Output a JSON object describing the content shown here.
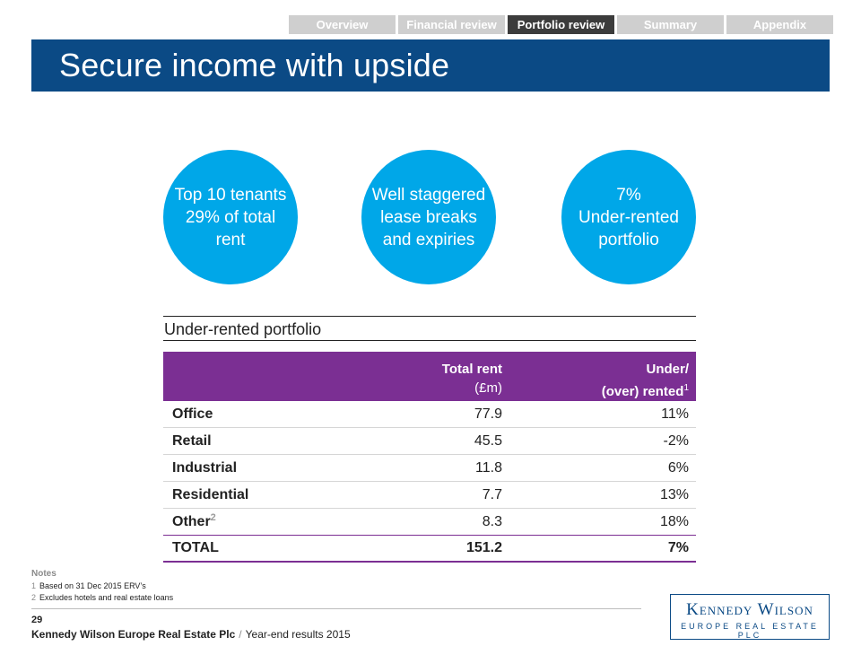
{
  "nav": {
    "tabs": [
      {
        "label": "Overview",
        "active": false
      },
      {
        "label": "Financial review",
        "active": false
      },
      {
        "label": "Portfolio review",
        "active": true
      },
      {
        "label": "Summary",
        "active": false
      },
      {
        "label": "Appendix",
        "active": false
      }
    ]
  },
  "title": "Secure income with upside",
  "circles": [
    {
      "lines": [
        "Top 10 tenants",
        "29% of total",
        "rent"
      ]
    },
    {
      "lines": [
        "Well staggered",
        "lease breaks",
        "and expiries"
      ]
    },
    {
      "lines": [
        "7%",
        "Under-rented",
        "portfolio"
      ]
    }
  ],
  "table": {
    "title": "Under-rented portfolio",
    "headers": {
      "col2_line1": "Total rent",
      "col2_line2": "(£m)",
      "col3_line1": "Under/",
      "col3_line2": "(over) rented",
      "col3_sup": "1"
    },
    "rows": [
      {
        "label": "Office",
        "sup": "",
        "rent": "77.9",
        "under": "11%"
      },
      {
        "label": "Retail",
        "sup": "",
        "rent": "45.5",
        "under": "-2%"
      },
      {
        "label": "Industrial",
        "sup": "",
        "rent": "11.8",
        "under": "6%"
      },
      {
        "label": "Residential",
        "sup": "",
        "rent": "7.7",
        "under": "13%"
      },
      {
        "label": "Other",
        "sup": "2",
        "rent": "8.3",
        "under": "18%"
      }
    ],
    "total": {
      "label": "TOTAL",
      "rent": "151.2",
      "under": "7%"
    }
  },
  "notes": {
    "header": "Notes",
    "items": [
      {
        "num": "1",
        "text": "Based on 31 Dec 2015 ERV’s"
      },
      {
        "num": "2",
        "text": "Excludes hotels and real estate loans"
      }
    ]
  },
  "footer": {
    "page": "29",
    "company": "Kennedy Wilson Europe Real Estate Plc",
    "separator": "/",
    "doc": "Year-end results 2015"
  },
  "logo": {
    "line1": "Kennedy Wilson",
    "line2": "EUROPE REAL ESTATE PLC"
  },
  "colors": {
    "title_bar": "#0b4a85",
    "circle": "#00a7e8",
    "table_header": "#7b2f93",
    "tab_inactive": "#cfcfcf",
    "tab_active": "#3c3c3c"
  }
}
